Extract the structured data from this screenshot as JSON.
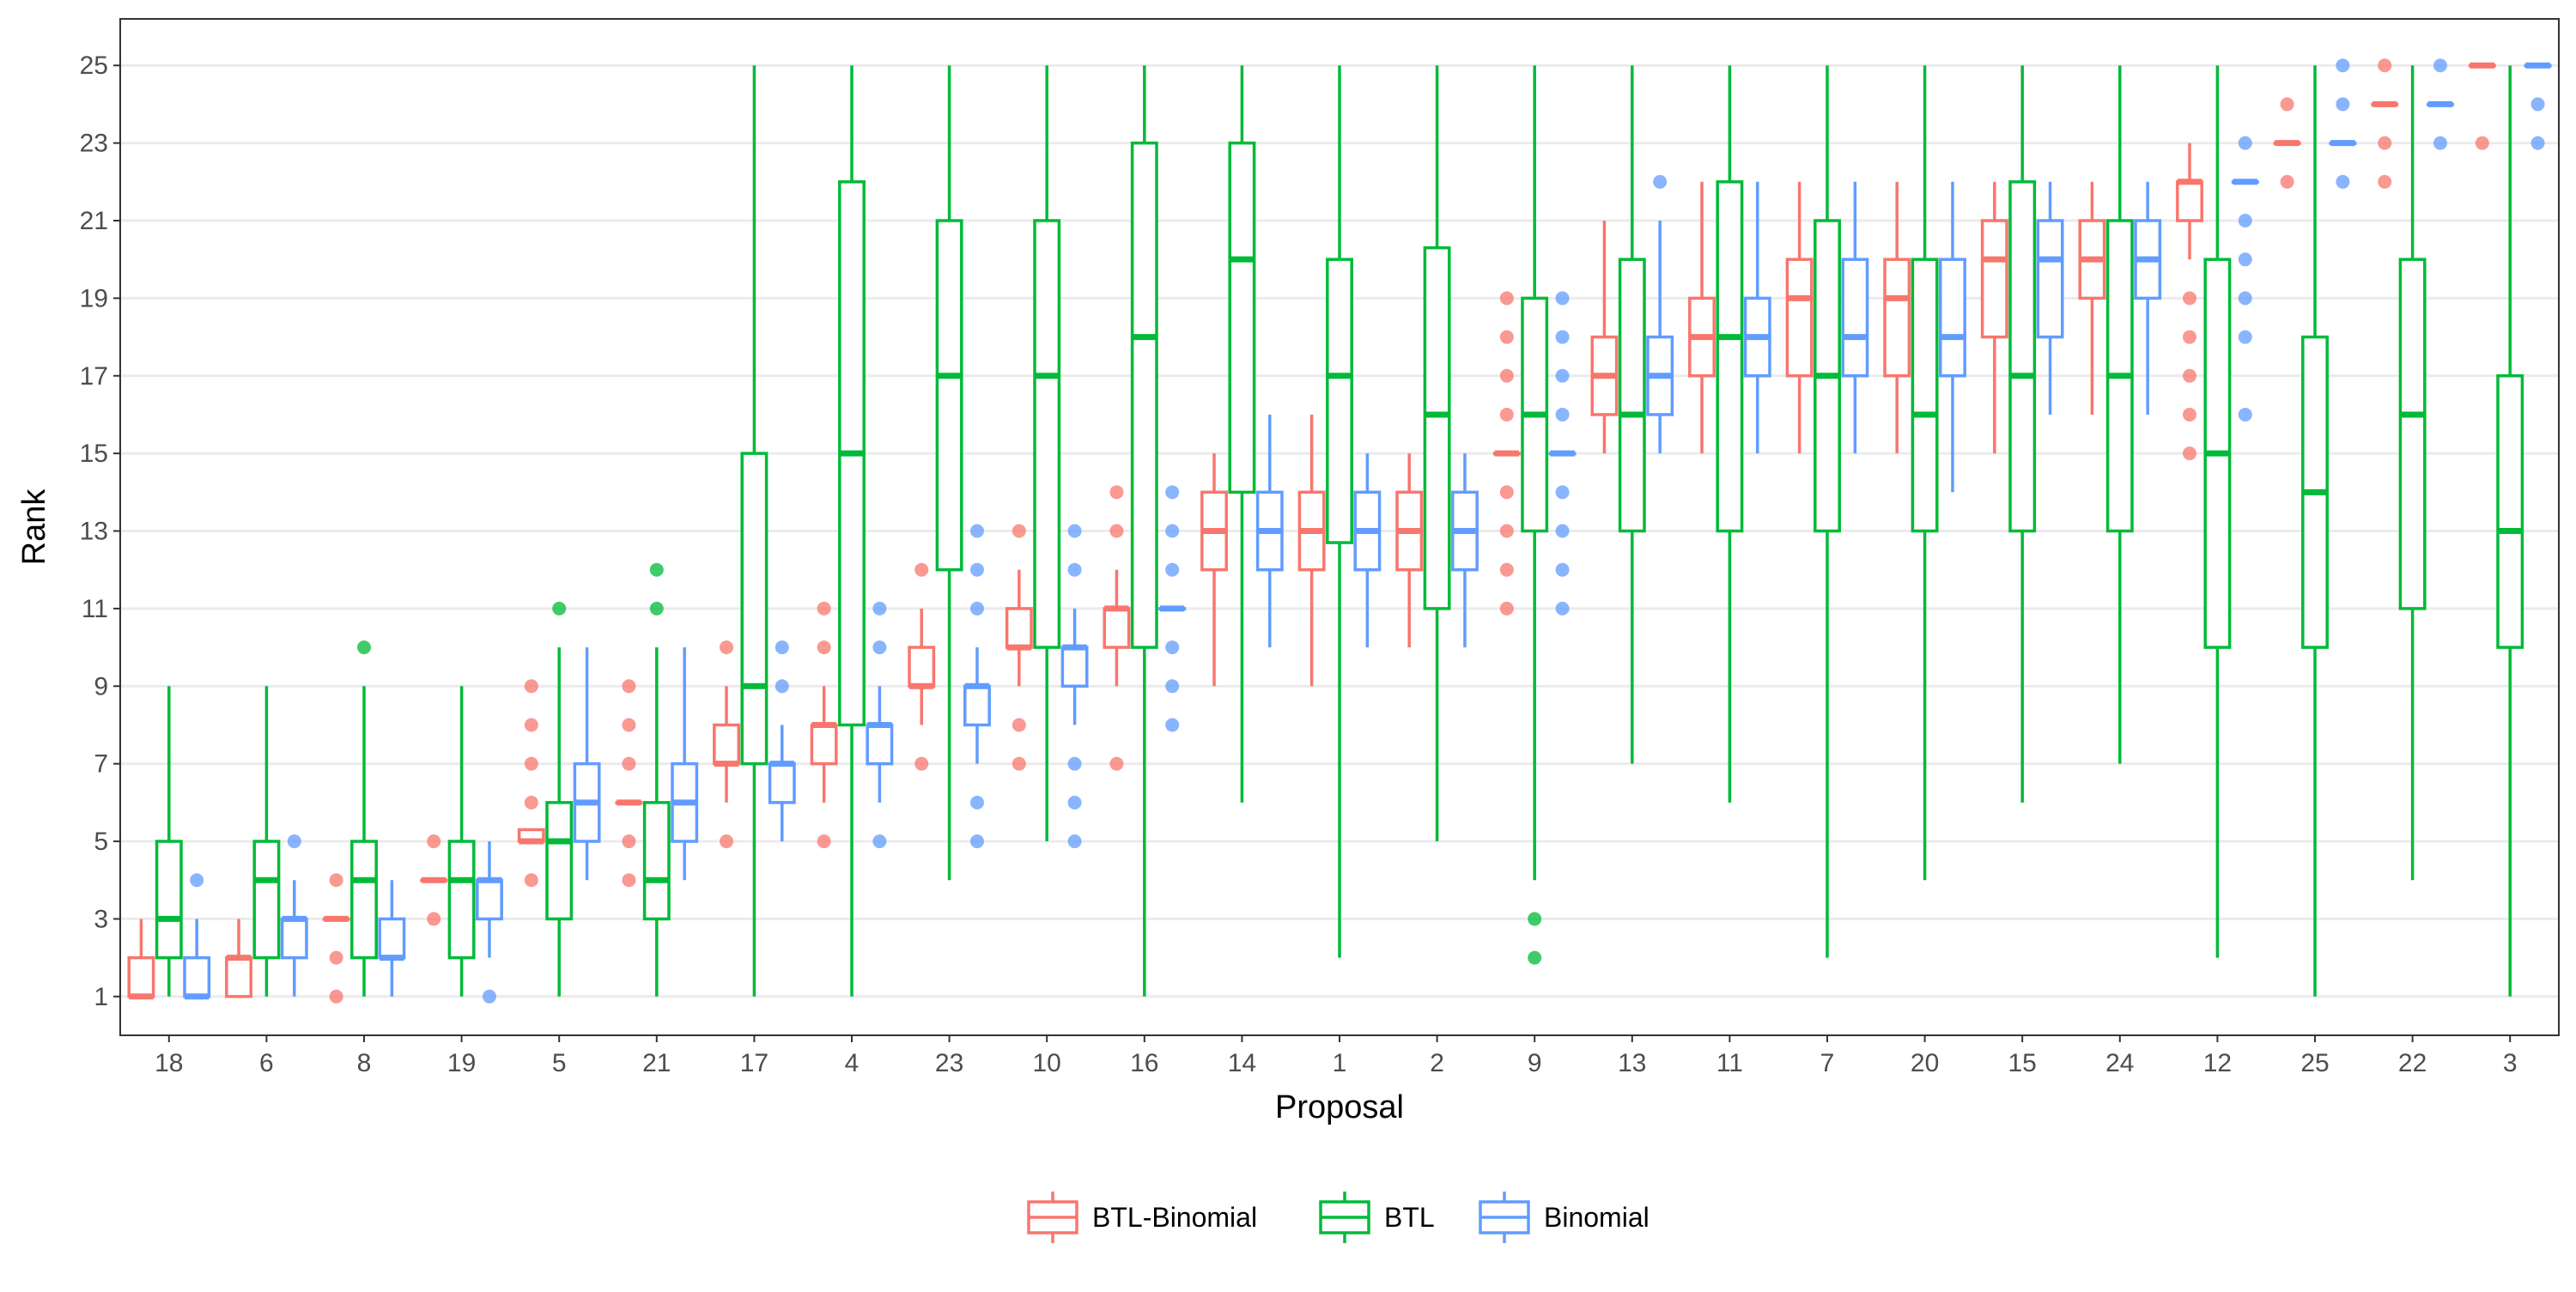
{
  "colors": {
    "BTL-Binomial": "#F8766D",
    "BTL": "#00BA38",
    "Binomial": "#619CFF",
    "grid": "#EBEBEB",
    "panel_border": "#333333"
  },
  "chart_data": {
    "type": "boxplot",
    "title": "",
    "xlabel": "Proposal",
    "ylabel": "Rank",
    "ylim": [
      0,
      26.2
    ],
    "yticks": [
      1,
      3,
      5,
      7,
      9,
      11,
      13,
      15,
      17,
      19,
      21,
      23,
      25
    ],
    "grid": true,
    "legend_position": "bottom",
    "categories": [
      "18",
      "6",
      "8",
      "19",
      "5",
      "21",
      "17",
      "4",
      "23",
      "10",
      "16",
      "14",
      "1",
      "2",
      "9",
      "13",
      "11",
      "7",
      "20",
      "15",
      "24",
      "12",
      "25",
      "22",
      "3"
    ],
    "series": [
      {
        "name": "BTL-Binomial",
        "boxes": [
          {
            "min": 1,
            "q1": 1,
            "median": 1,
            "q3": 2,
            "max": 3,
            "outliers": []
          },
          {
            "min": 1,
            "q1": 1,
            "median": 2,
            "q3": 2,
            "max": 3,
            "outliers": []
          },
          {
            "min": 3,
            "q1": 3,
            "median": 3,
            "q3": 3,
            "max": 3,
            "outliers": [
              1,
              2,
              4
            ]
          },
          {
            "min": 4,
            "q1": 4,
            "median": 4,
            "q3": 4,
            "max": 4,
            "outliers": [
              3,
              5
            ]
          },
          {
            "min": 5,
            "q1": 5,
            "median": 5,
            "q3": 5.3,
            "max": 5.3,
            "outliers": [
              4,
              6,
              7,
              8,
              9
            ]
          },
          {
            "min": 6,
            "q1": 6,
            "median": 6,
            "q3": 6,
            "max": 6,
            "outliers": [
              4,
              5,
              7,
              8,
              9
            ]
          },
          {
            "min": 6,
            "q1": 7,
            "median": 7,
            "q3": 8,
            "max": 9,
            "outliers": [
              5,
              10
            ]
          },
          {
            "min": 6,
            "q1": 7,
            "median": 8,
            "q3": 8,
            "max": 9,
            "outliers": [
              5,
              10,
              11
            ]
          },
          {
            "min": 8,
            "q1": 9,
            "median": 9,
            "q3": 10,
            "max": 11,
            "outliers": [
              7,
              12
            ]
          },
          {
            "min": 9,
            "q1": 10,
            "median": 10,
            "q3": 11,
            "max": 12,
            "outliers": [
              7,
              8,
              13
            ]
          },
          {
            "min": 9,
            "q1": 10,
            "median": 11,
            "q3": 11,
            "max": 12,
            "outliers": [
              7,
              13,
              14
            ]
          },
          {
            "min": 9,
            "q1": 12,
            "median": 13,
            "q3": 14,
            "max": 15,
            "outliers": []
          },
          {
            "min": 9,
            "q1": 12,
            "median": 13,
            "q3": 14,
            "max": 16,
            "outliers": []
          },
          {
            "min": 10,
            "q1": 12,
            "median": 13,
            "q3": 14,
            "max": 15,
            "outliers": []
          },
          {
            "min": 15,
            "q1": 15,
            "median": 15,
            "q3": 15,
            "max": 15,
            "outliers": [
              11,
              12,
              13,
              14,
              16,
              17,
              18,
              19
            ]
          },
          {
            "min": 15,
            "q1": 16,
            "median": 17,
            "q3": 18,
            "max": 21,
            "outliers": []
          },
          {
            "min": 15,
            "q1": 17,
            "median": 18,
            "q3": 19,
            "max": 22,
            "outliers": []
          },
          {
            "min": 15,
            "q1": 17,
            "median": 19,
            "q3": 20,
            "max": 22,
            "outliers": []
          },
          {
            "min": 15,
            "q1": 17,
            "median": 19,
            "q3": 20,
            "max": 22,
            "outliers": []
          },
          {
            "min": 15,
            "q1": 18,
            "median": 20,
            "q3": 21,
            "max": 22,
            "outliers": []
          },
          {
            "min": 16,
            "q1": 19,
            "median": 20,
            "q3": 21,
            "max": 22,
            "outliers": []
          },
          {
            "min": 20,
            "q1": 21,
            "median": 22,
            "q3": 22,
            "max": 23,
            "outliers": [
              15,
              16,
              17,
              18,
              19
            ]
          },
          {
            "min": 23,
            "q1": 23,
            "median": 23,
            "q3": 23,
            "max": 23,
            "outliers": [
              22,
              24
            ]
          },
          {
            "min": 24,
            "q1": 24,
            "median": 24,
            "q3": 24,
            "max": 24,
            "outliers": [
              22,
              23,
              25
            ]
          },
          {
            "min": 25,
            "q1": 25,
            "median": 25,
            "q3": 25,
            "max": 25,
            "outliers": [
              23
            ]
          }
        ]
      },
      {
        "name": "BTL",
        "boxes": [
          {
            "min": 1,
            "q1": 2,
            "median": 3,
            "q3": 5,
            "max": 9,
            "outliers": []
          },
          {
            "min": 1,
            "q1": 2,
            "median": 4,
            "q3": 5,
            "max": 9,
            "outliers": []
          },
          {
            "min": 1,
            "q1": 2,
            "median": 4,
            "q3": 5,
            "max": 9,
            "outliers": [
              10
            ]
          },
          {
            "min": 1,
            "q1": 2,
            "median": 4,
            "q3": 5,
            "max": 9,
            "outliers": []
          },
          {
            "min": 1,
            "q1": 3,
            "median": 5,
            "q3": 6,
            "max": 10,
            "outliers": [
              11
            ]
          },
          {
            "min": 1,
            "q1": 3,
            "median": 4,
            "q3": 6,
            "max": 10,
            "outliers": [
              11,
              12
            ]
          },
          {
            "min": 1,
            "q1": 7,
            "median": 9,
            "q3": 15,
            "max": 25,
            "outliers": []
          },
          {
            "min": 1,
            "q1": 8,
            "median": 15,
            "q3": 22,
            "max": 25,
            "outliers": []
          },
          {
            "min": 4,
            "q1": 12,
            "median": 17,
            "q3": 21,
            "max": 25,
            "outliers": []
          },
          {
            "min": 5,
            "q1": 10,
            "median": 17,
            "q3": 21,
            "max": 25,
            "outliers": []
          },
          {
            "min": 1,
            "q1": 10,
            "median": 18,
            "q3": 23,
            "max": 25,
            "outliers": []
          },
          {
            "min": 6,
            "q1": 14,
            "median": 20,
            "q3": 23,
            "max": 25,
            "outliers": []
          },
          {
            "min": 2,
            "q1": 12.7,
            "median": 17,
            "q3": 20,
            "max": 25,
            "outliers": []
          },
          {
            "min": 5,
            "q1": 11,
            "median": 16,
            "q3": 20.3,
            "max": 25,
            "outliers": []
          },
          {
            "min": 4,
            "q1": 13,
            "median": 16,
            "q3": 19,
            "max": 25,
            "outliers": [
              2,
              3
            ]
          },
          {
            "min": 7,
            "q1": 13,
            "median": 16,
            "q3": 20,
            "max": 25,
            "outliers": []
          },
          {
            "min": 6,
            "q1": 13,
            "median": 18,
            "q3": 22,
            "max": 25,
            "outliers": []
          },
          {
            "min": 2,
            "q1": 13,
            "median": 17,
            "q3": 21,
            "max": 25,
            "outliers": []
          },
          {
            "min": 4,
            "q1": 13,
            "median": 16,
            "q3": 20,
            "max": 25,
            "outliers": []
          },
          {
            "min": 6,
            "q1": 13,
            "median": 17,
            "q3": 22,
            "max": 25,
            "outliers": []
          },
          {
            "min": 7,
            "q1": 13,
            "median": 17,
            "q3": 21,
            "max": 25,
            "outliers": []
          },
          {
            "min": 2,
            "q1": 10,
            "median": 15,
            "q3": 20,
            "max": 25,
            "outliers": []
          },
          {
            "min": 1,
            "q1": 10,
            "median": 14,
            "q3": 18,
            "max": 25,
            "outliers": []
          },
          {
            "min": 4,
            "q1": 11,
            "median": 16,
            "q3": 20,
            "max": 25,
            "outliers": []
          },
          {
            "min": 1,
            "q1": 10,
            "median": 13,
            "q3": 17,
            "max": 25,
            "outliers": []
          }
        ]
      },
      {
        "name": "Binomial",
        "boxes": [
          {
            "min": 1,
            "q1": 1,
            "median": 1,
            "q3": 2,
            "max": 3,
            "outliers": [
              4
            ]
          },
          {
            "min": 1,
            "q1": 2,
            "median": 3,
            "q3": 3,
            "max": 4,
            "outliers": [
              5
            ]
          },
          {
            "min": 1,
            "q1": 2,
            "median": 2,
            "q3": 3,
            "max": 4,
            "outliers": []
          },
          {
            "min": 2,
            "q1": 3,
            "median": 4,
            "q3": 4,
            "max": 5,
            "outliers": [
              1
            ]
          },
          {
            "min": 4,
            "q1": 5,
            "median": 6,
            "q3": 7,
            "max": 10,
            "outliers": []
          },
          {
            "min": 4,
            "q1": 5,
            "median": 6,
            "q3": 7,
            "max": 10,
            "outliers": []
          },
          {
            "min": 5,
            "q1": 6,
            "median": 7,
            "q3": 7,
            "max": 8,
            "outliers": [
              9,
              10
            ]
          },
          {
            "min": 6,
            "q1": 7,
            "median": 8,
            "q3": 8,
            "max": 9,
            "outliers": [
              5,
              10,
              11
            ]
          },
          {
            "min": 7,
            "q1": 8,
            "median": 9,
            "q3": 9,
            "max": 10,
            "outliers": [
              5,
              6,
              11,
              12,
              13
            ]
          },
          {
            "min": 8,
            "q1": 9,
            "median": 10,
            "q3": 10,
            "max": 11,
            "outliers": [
              5,
              6,
              7,
              12,
              13
            ]
          },
          {
            "min": 11,
            "q1": 11,
            "median": 11,
            "q3": 11,
            "max": 11,
            "outliers": [
              8,
              9,
              10,
              12,
              13,
              14
            ]
          },
          {
            "min": 10,
            "q1": 12,
            "median": 13,
            "q3": 14,
            "max": 16,
            "outliers": []
          },
          {
            "min": 10,
            "q1": 12,
            "median": 13,
            "q3": 14,
            "max": 15,
            "outliers": []
          },
          {
            "min": 10,
            "q1": 12,
            "median": 13,
            "q3": 14,
            "max": 15,
            "outliers": []
          },
          {
            "min": 15,
            "q1": 15,
            "median": 15,
            "q3": 15,
            "max": 15,
            "outliers": [
              11,
              12,
              13,
              14,
              16,
              17,
              18,
              19
            ]
          },
          {
            "min": 15,
            "q1": 16,
            "median": 17,
            "q3": 18,
            "max": 21,
            "outliers": [
              22
            ]
          },
          {
            "min": 15,
            "q1": 17,
            "median": 18,
            "q3": 19,
            "max": 22,
            "outliers": []
          },
          {
            "min": 15,
            "q1": 17,
            "median": 18,
            "q3": 20,
            "max": 22,
            "outliers": []
          },
          {
            "min": 14,
            "q1": 17,
            "median": 18,
            "q3": 20,
            "max": 22,
            "outliers": []
          },
          {
            "min": 16,
            "q1": 18,
            "median": 20,
            "q3": 21,
            "max": 22,
            "outliers": []
          },
          {
            "min": 16,
            "q1": 19,
            "median": 20,
            "q3": 21,
            "max": 22,
            "outliers": []
          },
          {
            "min": 22,
            "q1": 22,
            "median": 22,
            "q3": 22,
            "max": 22,
            "outliers": [
              16,
              18,
              19,
              20,
              21,
              23
            ]
          },
          {
            "min": 23,
            "q1": 23,
            "median": 23,
            "q3": 23,
            "max": 23,
            "outliers": [
              22,
              24,
              25
            ]
          },
          {
            "min": 24,
            "q1": 24,
            "median": 24,
            "q3": 24,
            "max": 24,
            "outliers": [
              23,
              25
            ]
          },
          {
            "min": 25,
            "q1": 25,
            "median": 25,
            "q3": 25,
            "max": 25,
            "outliers": [
              23,
              24
            ]
          }
        ]
      }
    ]
  }
}
